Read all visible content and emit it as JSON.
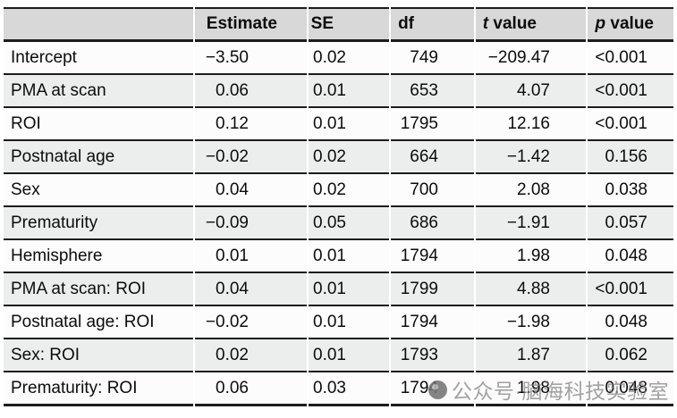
{
  "table": {
    "headers": {
      "label": "",
      "estimate": "Estimate",
      "se": "SE",
      "df": "df",
      "t_italic": "t",
      "t_rest": " value",
      "p_italic": "p",
      "p_rest": " value"
    },
    "rows": [
      {
        "label": "Intercept",
        "estimate": "−3.50",
        "se": "0.02",
        "df": "749",
        "t": "−209.47",
        "p": "<0.001"
      },
      {
        "label": "PMA at scan",
        "estimate": "0.06",
        "se": "0.01",
        "df": "653",
        "t": "4.07",
        "p": "<0.001"
      },
      {
        "label": "ROI",
        "estimate": "0.12",
        "se": "0.01",
        "df": "1795",
        "t": "12.16",
        "p": "<0.001"
      },
      {
        "label": "Postnatal age",
        "estimate": "−0.02",
        "se": "0.02",
        "df": "664",
        "t": "−1.42",
        "p": "0.156"
      },
      {
        "label": "Sex",
        "estimate": "0.04",
        "se": "0.02",
        "df": "700",
        "t": "2.08",
        "p": "0.038"
      },
      {
        "label": "Prematurity",
        "estimate": "−0.09",
        "se": "0.05",
        "df": "686",
        "t": "−1.91",
        "p": "0.057"
      },
      {
        "label": "Hemisphere",
        "estimate": "0.01",
        "se": "0.01",
        "df": "1794",
        "t": "1.98",
        "p": "0.048"
      },
      {
        "label": "PMA at scan: ROI",
        "estimate": "0.04",
        "se": "0.01",
        "df": "1799",
        "t": "4.88",
        "p": "<0.001"
      },
      {
        "label": "Postnatal age: ROI",
        "estimate": "−0.02",
        "se": "0.01",
        "df": "1794",
        "t": "−1.98",
        "p": "0.048"
      },
      {
        "label": "Sex: ROI",
        "estimate": "0.02",
        "se": "0.01",
        "df": "1793",
        "t": "1.87",
        "p": "0.062"
      },
      {
        "label": "Prematurity: ROI",
        "estimate": "0.06",
        "se": "0.03",
        "df": "1794",
        "t": "1.98",
        "p": "0.048"
      }
    ]
  },
  "watermark": {
    "text": "公众号·脑海科技实验室",
    "icon": "wechat-official-account-logo"
  },
  "colors": {
    "header_background": "#d8d8d8",
    "row_stripe": "#ebeeec",
    "row_plain": "#fcfcfc",
    "rule": "#1c1c1c",
    "watermark_gray": "#808080"
  }
}
